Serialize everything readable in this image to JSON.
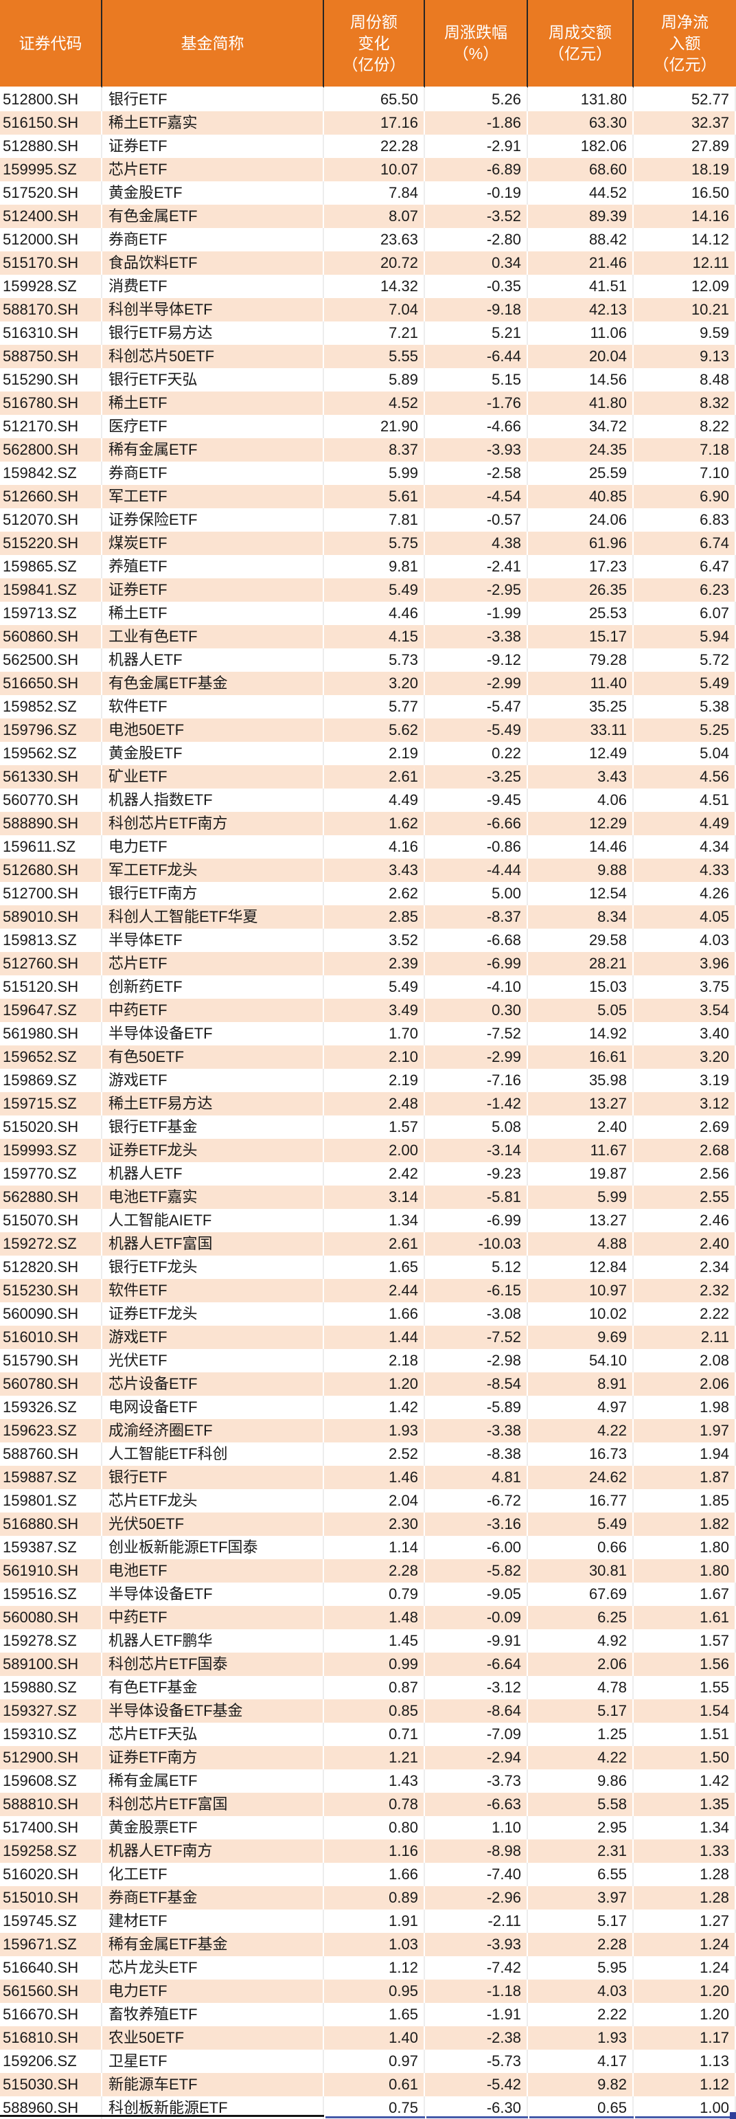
{
  "table": {
    "columns": [
      {
        "key": "code",
        "label": "证券代码"
      },
      {
        "key": "name",
        "label": "基金简称"
      },
      {
        "key": "share_change",
        "label": "周份额\n变化\n（亿份）"
      },
      {
        "key": "pct_change",
        "label": "周涨跌幅\n（%）"
      },
      {
        "key": "turnover",
        "label": "周成交额\n（亿元）"
      },
      {
        "key": "net_inflow",
        "label": "周净流\n入额\n（亿元）"
      }
    ],
    "rows": [
      [
        "512800.SH",
        "银行ETF",
        "65.50",
        "5.26",
        "131.80",
        "52.77"
      ],
      [
        "516150.SH",
        "稀土ETF嘉实",
        "17.16",
        "-1.86",
        "63.30",
        "32.37"
      ],
      [
        "512880.SH",
        "证券ETF",
        "22.28",
        "-2.91",
        "182.06",
        "27.89"
      ],
      [
        "159995.SZ",
        "芯片ETF",
        "10.07",
        "-6.89",
        "68.60",
        "18.19"
      ],
      [
        "517520.SH",
        "黄金股ETF",
        "7.84",
        "-0.19",
        "44.52",
        "16.50"
      ],
      [
        "512400.SH",
        "有色金属ETF",
        "8.07",
        "-3.52",
        "89.39",
        "14.16"
      ],
      [
        "512000.SH",
        "券商ETF",
        "23.63",
        "-2.80",
        "88.42",
        "14.12"
      ],
      [
        "515170.SH",
        "食品饮料ETF",
        "20.72",
        "0.34",
        "21.46",
        "12.11"
      ],
      [
        "159928.SZ",
        "消费ETF",
        "14.32",
        "-0.35",
        "41.51",
        "12.09"
      ],
      [
        "588170.SH",
        "科创半导体ETF",
        "7.04",
        "-9.18",
        "42.13",
        "10.21"
      ],
      [
        "516310.SH",
        "银行ETF易方达",
        "7.21",
        "5.21",
        "11.06",
        "9.59"
      ],
      [
        "588750.SH",
        "科创芯片50ETF",
        "5.55",
        "-6.44",
        "20.04",
        "9.13"
      ],
      [
        "515290.SH",
        "银行ETF天弘",
        "5.89",
        "5.15",
        "14.56",
        "8.48"
      ],
      [
        "516780.SH",
        "稀土ETF",
        "4.52",
        "-1.76",
        "41.80",
        "8.32"
      ],
      [
        "512170.SH",
        "医疗ETF",
        "21.90",
        "-4.66",
        "34.72",
        "8.22"
      ],
      [
        "562800.SH",
        "稀有金属ETF",
        "8.37",
        "-3.93",
        "24.35",
        "7.18"
      ],
      [
        "159842.SZ",
        "券商ETF",
        "5.99",
        "-2.58",
        "25.59",
        "7.10"
      ],
      [
        "512660.SH",
        "军工ETF",
        "5.61",
        "-4.54",
        "40.85",
        "6.90"
      ],
      [
        "512070.SH",
        "证券保险ETF",
        "7.81",
        "-0.57",
        "24.06",
        "6.83"
      ],
      [
        "515220.SH",
        "煤炭ETF",
        "5.75",
        "4.38",
        "61.96",
        "6.74"
      ],
      [
        "159865.SZ",
        "养殖ETF",
        "9.81",
        "-2.41",
        "17.23",
        "6.47"
      ],
      [
        "159841.SZ",
        "证券ETF",
        "5.49",
        "-2.95",
        "26.35",
        "6.23"
      ],
      [
        "159713.SZ",
        "稀土ETF",
        "4.46",
        "-1.99",
        "25.53",
        "6.07"
      ],
      [
        "560860.SH",
        "工业有色ETF",
        "4.15",
        "-3.38",
        "15.17",
        "5.94"
      ],
      [
        "562500.SH",
        "机器人ETF",
        "5.73",
        "-9.12",
        "79.28",
        "5.72"
      ],
      [
        "516650.SH",
        "有色金属ETF基金",
        "3.20",
        "-2.99",
        "11.40",
        "5.49"
      ],
      [
        "159852.SZ",
        "软件ETF",
        "5.77",
        "-5.47",
        "35.25",
        "5.38"
      ],
      [
        "159796.SZ",
        "电池50ETF",
        "5.62",
        "-5.49",
        "33.11",
        "5.25"
      ],
      [
        "159562.SZ",
        "黄金股ETF",
        "2.19",
        "0.22",
        "12.49",
        "5.04"
      ],
      [
        "561330.SH",
        "矿业ETF",
        "2.61",
        "-3.25",
        "3.43",
        "4.56"
      ],
      [
        "560770.SH",
        "机器人指数ETF",
        "4.49",
        "-9.45",
        "4.06",
        "4.51"
      ],
      [
        "588890.SH",
        "科创芯片ETF南方",
        "1.62",
        "-6.66",
        "12.29",
        "4.49"
      ],
      [
        "159611.SZ",
        "电力ETF",
        "4.16",
        "-0.86",
        "14.46",
        "4.34"
      ],
      [
        "512680.SH",
        "军工ETF龙头",
        "3.43",
        "-4.44",
        "9.88",
        "4.33"
      ],
      [
        "512700.SH",
        "银行ETF南方",
        "2.62",
        "5.00",
        "12.54",
        "4.26"
      ],
      [
        "589010.SH",
        "科创人工智能ETF华夏",
        "2.85",
        "-8.37",
        "8.34",
        "4.05"
      ],
      [
        "159813.SZ",
        "半导体ETF",
        "3.52",
        "-6.68",
        "29.58",
        "4.03"
      ],
      [
        "512760.SH",
        "芯片ETF",
        "2.39",
        "-6.99",
        "28.21",
        "3.96"
      ],
      [
        "515120.SH",
        "创新药ETF",
        "5.49",
        "-4.10",
        "15.03",
        "3.75"
      ],
      [
        "159647.SZ",
        "中药ETF",
        "3.49",
        "0.30",
        "5.05",
        "3.54"
      ],
      [
        "561980.SH",
        "半导体设备ETF",
        "1.70",
        "-7.52",
        "14.92",
        "3.40"
      ],
      [
        "159652.SZ",
        "有色50ETF",
        "2.10",
        "-2.99",
        "16.61",
        "3.20"
      ],
      [
        "159869.SZ",
        "游戏ETF",
        "2.19",
        "-7.16",
        "35.98",
        "3.19"
      ],
      [
        "159715.SZ",
        "稀土ETF易方达",
        "2.48",
        "-1.42",
        "13.27",
        "3.12"
      ],
      [
        "515020.SH",
        "银行ETF基金",
        "1.57",
        "5.08",
        "2.40",
        "2.69"
      ],
      [
        "159993.SZ",
        "证券ETF龙头",
        "2.00",
        "-3.14",
        "11.67",
        "2.68"
      ],
      [
        "159770.SZ",
        "机器人ETF",
        "2.42",
        "-9.23",
        "19.87",
        "2.56"
      ],
      [
        "562880.SH",
        "电池ETF嘉实",
        "3.14",
        "-5.81",
        "5.99",
        "2.55"
      ],
      [
        "515070.SH",
        "人工智能AIETF",
        "1.34",
        "-6.99",
        "13.27",
        "2.46"
      ],
      [
        "159272.SZ",
        "机器人ETF富国",
        "2.61",
        "-10.03",
        "4.88",
        "2.40"
      ],
      [
        "512820.SH",
        "银行ETF龙头",
        "1.65",
        "5.12",
        "12.84",
        "2.34"
      ],
      [
        "515230.SH",
        "软件ETF",
        "2.44",
        "-6.15",
        "10.97",
        "2.32"
      ],
      [
        "560090.SH",
        "证券ETF龙头",
        "1.66",
        "-3.08",
        "10.02",
        "2.22"
      ],
      [
        "516010.SH",
        "游戏ETF",
        "1.44",
        "-7.52",
        "9.69",
        "2.11"
      ],
      [
        "515790.SH",
        "光伏ETF",
        "2.18",
        "-2.98",
        "54.10",
        "2.08"
      ],
      [
        "560780.SH",
        "芯片设备ETF",
        "1.20",
        "-8.54",
        "8.91",
        "2.06"
      ],
      [
        "159326.SZ",
        "电网设备ETF",
        "1.42",
        "-5.89",
        "4.97",
        "1.98"
      ],
      [
        "159623.SZ",
        "成渝经济圈ETF",
        "1.93",
        "-3.38",
        "4.22",
        "1.97"
      ],
      [
        "588760.SH",
        "人工智能ETF科创",
        "2.52",
        "-8.38",
        "16.73",
        "1.94"
      ],
      [
        "159887.SZ",
        "银行ETF",
        "1.46",
        "4.81",
        "24.62",
        "1.87"
      ],
      [
        "159801.SZ",
        "芯片ETF龙头",
        "2.04",
        "-6.72",
        "16.77",
        "1.85"
      ],
      [
        "516880.SH",
        "光伏50ETF",
        "2.30",
        "-3.16",
        "5.49",
        "1.82"
      ],
      [
        "159387.SZ",
        "创业板新能源ETF国泰",
        "1.14",
        "-6.00",
        "0.66",
        "1.80"
      ],
      [
        "561910.SH",
        "电池ETF",
        "2.28",
        "-5.82",
        "30.81",
        "1.80"
      ],
      [
        "159516.SZ",
        "半导体设备ETF",
        "0.79",
        "-9.05",
        "67.69",
        "1.67"
      ],
      [
        "560080.SH",
        "中药ETF",
        "1.48",
        "-0.09",
        "6.25",
        "1.61"
      ],
      [
        "159278.SZ",
        "机器人ETF鹏华",
        "1.45",
        "-9.91",
        "4.92",
        "1.57"
      ],
      [
        "589100.SH",
        "科创芯片ETF国泰",
        "0.99",
        "-6.64",
        "2.06",
        "1.56"
      ],
      [
        "159880.SZ",
        "有色ETF基金",
        "0.87",
        "-3.12",
        "4.78",
        "1.55"
      ],
      [
        "159327.SZ",
        "半导体设备ETF基金",
        "0.85",
        "-8.64",
        "5.17",
        "1.54"
      ],
      [
        "159310.SZ",
        "芯片ETF天弘",
        "0.71",
        "-7.09",
        "1.25",
        "1.51"
      ],
      [
        "512900.SH",
        "证券ETF南方",
        "1.21",
        "-2.94",
        "4.22",
        "1.50"
      ],
      [
        "159608.SZ",
        "稀有金属ETF",
        "1.43",
        "-3.73",
        "9.86",
        "1.42"
      ],
      [
        "588810.SH",
        "科创芯片ETF富国",
        "0.78",
        "-6.63",
        "5.58",
        "1.35"
      ],
      [
        "517400.SH",
        "黄金股票ETF",
        "0.80",
        "1.10",
        "2.95",
        "1.34"
      ],
      [
        "159258.SZ",
        "机器人ETF南方",
        "1.16",
        "-8.98",
        "2.31",
        "1.33"
      ],
      [
        "516020.SH",
        "化工ETF",
        "1.66",
        "-7.40",
        "6.55",
        "1.28"
      ],
      [
        "515010.SH",
        "券商ETF基金",
        "0.89",
        "-2.96",
        "3.97",
        "1.28"
      ],
      [
        "159745.SZ",
        "建材ETF",
        "1.91",
        "-2.11",
        "5.17",
        "1.27"
      ],
      [
        "159671.SZ",
        "稀有金属ETF基金",
        "1.03",
        "-3.93",
        "2.28",
        "1.24"
      ],
      [
        "516640.SH",
        "芯片龙头ETF",
        "1.12",
        "-7.42",
        "5.95",
        "1.24"
      ],
      [
        "561560.SH",
        "电力ETF",
        "0.95",
        "-1.18",
        "4.03",
        "1.20"
      ],
      [
        "516670.SH",
        "畜牧养殖ETF",
        "1.65",
        "-1.91",
        "2.22",
        "1.20"
      ],
      [
        "516810.SH",
        "农业50ETF",
        "1.40",
        "-2.38",
        "1.93",
        "1.17"
      ],
      [
        "159206.SZ",
        "卫星ETF",
        "0.97",
        "-5.73",
        "4.17",
        "1.13"
      ],
      [
        "515030.SH",
        "新能源车ETF",
        "0.61",
        "-5.42",
        "9.82",
        "1.12"
      ],
      [
        "588960.SH",
        "科创板新能源ETF",
        "0.75",
        "-6.30",
        "0.65",
        "1.00"
      ]
    ]
  },
  "colors": {
    "header_bg": "#EA7A22",
    "header_text": "#FFFFFF",
    "row_alt_bg": "#FBE3D1",
    "row_bg": "#FFFFFF",
    "bottom_line_black": "#131313",
    "bottom_strip_blue": "#4459A9",
    "corner_handle_blue": "#2F3F9A"
  }
}
